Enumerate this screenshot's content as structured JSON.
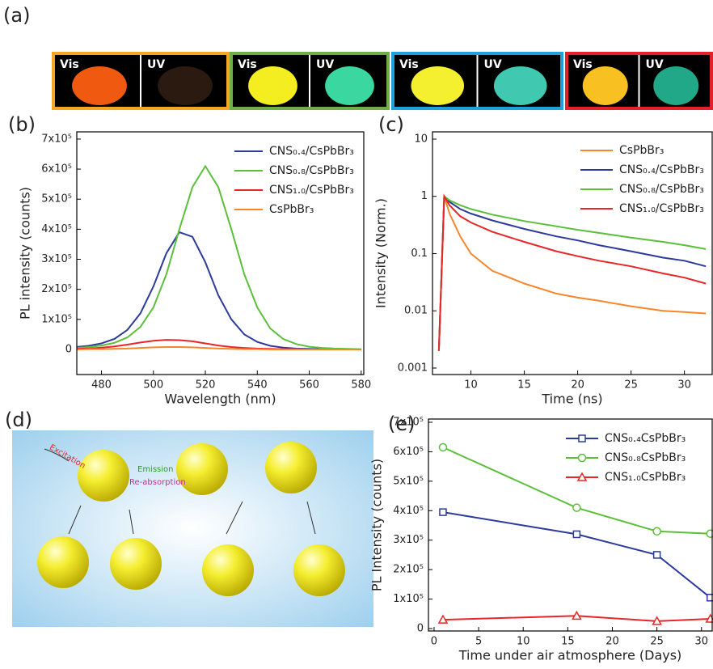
{
  "photos": {
    "label": "(a)",
    "frames": [
      {
        "color": "#f5a623",
        "left": "Vis",
        "right": "UV"
      },
      {
        "color": "#70ad47",
        "left": "Vis",
        "right": "UV"
      },
      {
        "color": "#1ea0dc",
        "left": "Vis",
        "right": "UV"
      },
      {
        "color": "#e4202b",
        "left": "Vis",
        "right": "UV"
      }
    ]
  },
  "diagram": {
    "label": "(d)",
    "texts": [
      "Excitation",
      "Emission",
      "Re-absorption"
    ]
  },
  "chart_data": [
    {
      "type": "line",
      "label": "(b)",
      "xlabel": "Wavelength (nm)",
      "ylabel": "PL intensity (counts)",
      "x": [
        470,
        475,
        480,
        485,
        490,
        495,
        500,
        505,
        510,
        515,
        520,
        525,
        530,
        535,
        540,
        545,
        550,
        555,
        560,
        565,
        570,
        575,
        580
      ],
      "xlim": [
        470.5,
        581
      ],
      "xticks": [
        480,
        500,
        520,
        540,
        560,
        580
      ],
      "ylim": [
        -83500,
        724000
      ],
      "yticks": [
        0,
        {
          "value": 100000,
          "label": "1x10⁵"
        },
        {
          "value": 200000,
          "label": "2x10⁵"
        },
        {
          "value": 300000,
          "label": "3x10⁵"
        },
        {
          "value": 400000,
          "label": "4x10⁵"
        },
        {
          "value": 500000,
          "label": "5x10⁵"
        },
        {
          "value": 600000,
          "label": "6x10⁵"
        },
        {
          "value": 700000,
          "label": "7x10⁵"
        }
      ],
      "series": [
        {
          "name": "CNS₀.₄/CsPbBr₃",
          "color": "#2b3a9b",
          "values": [
            8000,
            12000,
            20000,
            35000,
            65000,
            120000,
            210000,
            320000,
            390000,
            375000,
            290000,
            180000,
            100000,
            50000,
            25000,
            12000,
            6000,
            3000,
            2000,
            1000,
            1000,
            0,
            0
          ]
        },
        {
          "name": "CNS₀.₈/CsPbBr₃",
          "color": "#5bbf3a",
          "values": [
            5000,
            8000,
            13000,
            22000,
            40000,
            75000,
            140000,
            250000,
            400000,
            540000,
            610000,
            540000,
            400000,
            250000,
            140000,
            70000,
            35000,
            18000,
            9000,
            5000,
            3000,
            2000,
            1000
          ]
        },
        {
          "name": "CNS₁.₀/CsPbBr₃",
          "color": "#e8262a",
          "values": [
            2000,
            3000,
            6000,
            10000,
            16000,
            23000,
            29000,
            32000,
            31000,
            27000,
            20000,
            13000,
            8000,
            5000,
            3000,
            2000,
            1000,
            1000,
            0,
            0,
            0,
            0,
            0
          ]
        },
        {
          "name": "CsPbBr₃",
          "color": "#f7862a",
          "values": [
            0,
            1000,
            1000,
            2000,
            3000,
            5000,
            7000,
            8000,
            8000,
            7000,
            5000,
            3000,
            2000,
            1000,
            1000,
            0,
            0,
            0,
            0,
            0,
            0,
            0,
            0
          ]
        }
      ]
    },
    {
      "type": "line",
      "label": "(c)",
      "xlabel": "Time (ns)",
      "ylabel": "Intensity (Norm.)",
      "log_y": true,
      "x": [
        7,
        7.5,
        8,
        9,
        10,
        12,
        15,
        18,
        20,
        22,
        25,
        28,
        30,
        32
      ],
      "xlim": [
        6.4,
        32.6
      ],
      "xticks": [
        10,
        15,
        20,
        25,
        30
      ],
      "ylim": [
        0.00077,
        13.4
      ],
      "yticks": [
        0.001,
        0.01,
        0.1,
        1,
        10
      ],
      "series": [
        {
          "name": "CsPbBr₃",
          "color": "#f7862a",
          "values": [
            0.002,
            1,
            0.5,
            0.2,
            0.1,
            0.05,
            0.03,
            0.02,
            0.017,
            0.015,
            0.012,
            0.01,
            0.0095,
            0.009
          ]
        },
        {
          "name": "CNS₀.₄/CsPbBr₃",
          "color": "#2b3a9b",
          "values": [
            0.002,
            1,
            0.8,
            0.6,
            0.5,
            0.38,
            0.27,
            0.2,
            0.17,
            0.14,
            0.11,
            0.085,
            0.075,
            0.06
          ]
        },
        {
          "name": "CNS₀.₈/CsPbBr₃",
          "color": "#5bbf3a",
          "values": [
            0.002,
            1,
            0.85,
            0.7,
            0.6,
            0.48,
            0.37,
            0.3,
            0.26,
            0.23,
            0.19,
            0.16,
            0.14,
            0.12
          ]
        },
        {
          "name": "CNS₁.₀/CsPbBr₃",
          "color": "#e8262a",
          "values": [
            0.002,
            1,
            0.7,
            0.45,
            0.35,
            0.24,
            0.16,
            0.11,
            0.09,
            0.075,
            0.06,
            0.045,
            0.038,
            0.03
          ]
        }
      ]
    },
    {
      "type": "line",
      "label": "(e)",
      "xlabel": "Time under air atmosphere (Days)",
      "ylabel": "PL Intensity (counts)",
      "x": [
        1,
        16,
        25,
        31
      ],
      "xlim": [
        -0.63,
        31.2
      ],
      "xticks": [
        0,
        5,
        10,
        15,
        20,
        25,
        30
      ],
      "ylim": [
        -8200,
        711000
      ],
      "yticks": [
        0,
        {
          "value": 100000,
          "label": "1x10⁵"
        },
        {
          "value": 200000,
          "label": "2x10⁵"
        },
        {
          "value": 300000,
          "label": "3x10⁵"
        },
        {
          "value": 400000,
          "label": "4x10⁵"
        },
        {
          "value": 500000,
          "label": "5x10⁵"
        },
        {
          "value": 600000,
          "label": "6x10⁵"
        },
        {
          "value": 700000,
          "label": "7x10⁵"
        }
      ],
      "series": [
        {
          "name": "CNS₀.₄CsPbBr₃",
          "color": "#2b3a9b",
          "marker": "square",
          "values": [
            395000,
            320000,
            250000,
            105000
          ]
        },
        {
          "name": "CNS₀.₈CsPbBr₃",
          "color": "#5bbf3a",
          "marker": "circle",
          "values": [
            615000,
            410000,
            330000,
            322000
          ]
        },
        {
          "name": "CNS₁.₀CsPbBr₃",
          "color": "#e8262a",
          "marker": "triangle",
          "values": [
            30000,
            43000,
            25000,
            33000
          ]
        }
      ]
    }
  ]
}
